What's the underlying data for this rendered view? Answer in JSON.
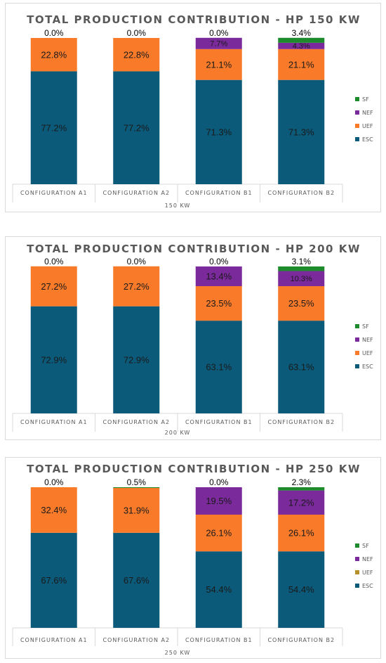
{
  "chart_data": [
    {
      "type": "bar",
      "stacked": true,
      "title": "TOTAL PRODUCTION CONTRIBUTION - HP 150 KW",
      "xlabel": "150 KW",
      "categories": [
        "CONFIGURATION A1",
        "CONFIGURATION A2",
        "CONFIGURATION B1",
        "CONFIGURATION B2"
      ],
      "ylim": [
        0,
        100
      ],
      "legend_position": "right",
      "series": [
        {
          "name": "ESC",
          "color": "#0b5a7a",
          "values": [
            77.2,
            77.2,
            71.3,
            71.3
          ],
          "labels": [
            "77.2%",
            "77.2%",
            "71.3%",
            "71.3%"
          ]
        },
        {
          "name": "UEF",
          "color": "#f97b2a",
          "values": [
            22.8,
            22.8,
            21.1,
            21.1
          ],
          "labels": [
            "22.8%",
            "22.8%",
            "21.1%",
            "21.1%"
          ]
        },
        {
          "name": "NEF",
          "color": "#7b2a9c",
          "values": [
            0,
            0,
            7.7,
            4.3
          ],
          "labels": [
            "",
            "",
            "7.7%",
            "4.3%"
          ]
        },
        {
          "name": "SF",
          "color": "#1d8a2c",
          "values": [
            0,
            0,
            0,
            3.4
          ],
          "labels": [
            "0.0%",
            "0.0%",
            "0.0%",
            "3.4%"
          ]
        }
      ]
    },
    {
      "type": "bar",
      "stacked": true,
      "title": "TOTAL PRODUCTION CONTRIBUTION - HP 200 KW",
      "xlabel": "200 KW",
      "categories": [
        "CONFIGURATION A1",
        "CONFIGURATION A2",
        "CONFIGURATION B1",
        "CONFIGURATION B2"
      ],
      "ylim": [
        0,
        100
      ],
      "legend_position": "right",
      "series": [
        {
          "name": "ESC",
          "color": "#0b5a7a",
          "values": [
            72.9,
            72.9,
            63.1,
            63.1
          ],
          "labels": [
            "72.9%",
            "72.9%",
            "63.1%",
            "63.1%"
          ]
        },
        {
          "name": "UEF",
          "color": "#f97b2a",
          "values": [
            27.2,
            27.2,
            23.5,
            23.5
          ],
          "labels": [
            "27.2%",
            "27.2%",
            "23.5%",
            "23.5%"
          ]
        },
        {
          "name": "NEF",
          "color": "#7b2a9c",
          "values": [
            0,
            0,
            13.4,
            10.3
          ],
          "labels": [
            "",
            "",
            "13.4%",
            "10.3%"
          ]
        },
        {
          "name": "SF",
          "color": "#1d8a2c",
          "values": [
            0,
            0,
            0,
            3.1
          ],
          "labels": [
            "0.0%",
            "0.0%",
            "0.0%",
            "3.1%"
          ]
        }
      ]
    },
    {
      "type": "bar",
      "stacked": true,
      "title": "TOTAL PRODUCTION CONTRIBUTION - HP 250 KW",
      "xlabel": "250 KW",
      "categories": [
        "CONFIGURATION A1",
        "CONFIGURATION A2",
        "CONFIGURATION B1",
        "CONFIGURATION B2"
      ],
      "ylim": [
        0,
        100
      ],
      "legend_position": "right",
      "series": [
        {
          "name": "ESC",
          "color": "#0b5a7a",
          "values": [
            67.6,
            67.6,
            54.4,
            54.4
          ],
          "labels": [
            "67.6%",
            "67.6%",
            "54.4%",
            "54.4%"
          ]
        },
        {
          "name": "UEF",
          "color": "#f97b2a",
          "values": [
            32.4,
            31.9,
            26.1,
            26.1
          ],
          "labels": [
            "32.4%",
            "31.9%",
            "26.1%",
            "26.1%"
          ]
        },
        {
          "name": "NEF",
          "color": "#7b2a9c",
          "values": [
            0,
            0,
            19.5,
            17.2
          ],
          "labels": [
            "",
            "",
            "19.5%",
            "17.2%"
          ]
        },
        {
          "name": "SF",
          "color": "#1d8a2c",
          "values": [
            0,
            0.5,
            0,
            2.3
          ],
          "labels": [
            "0.0%",
            "0.5%",
            "0.0%",
            "2.3%"
          ]
        }
      ],
      "uef_legend_color": "#b5902a"
    }
  ]
}
